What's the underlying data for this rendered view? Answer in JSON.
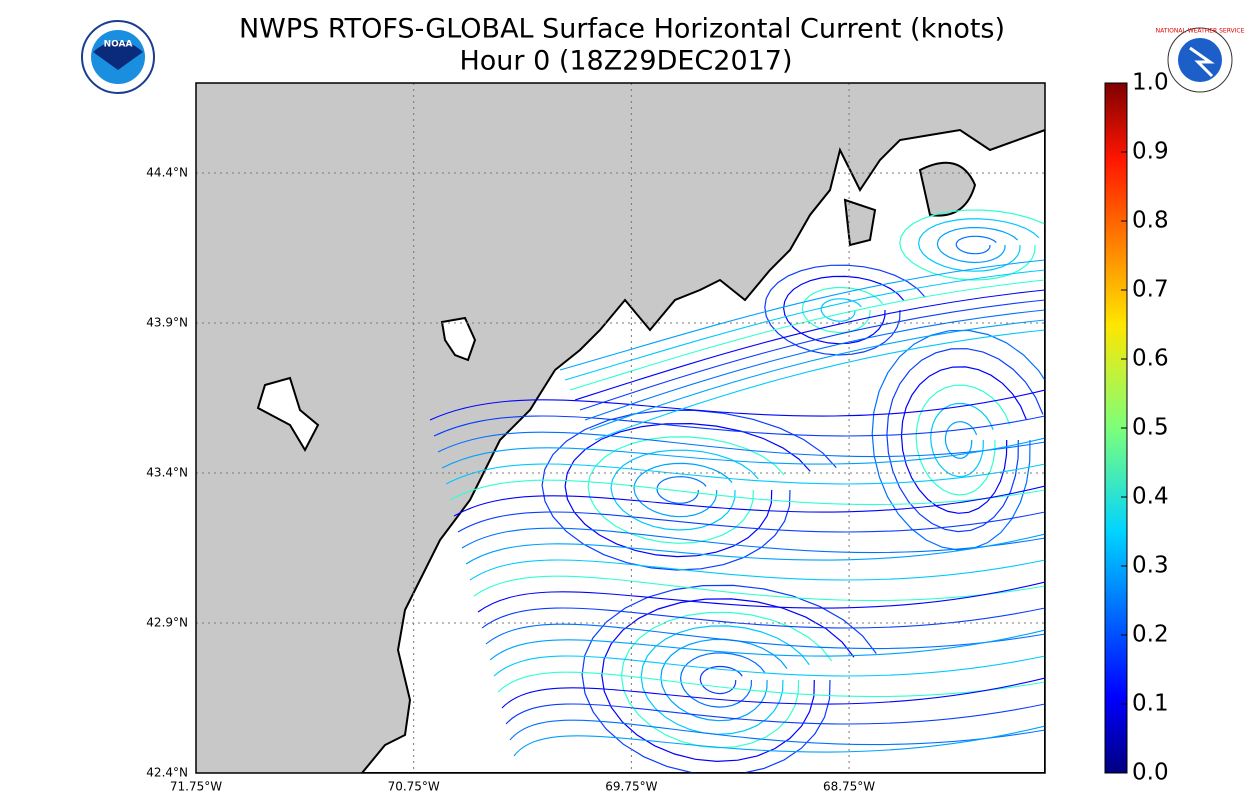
{
  "chart_data": {
    "type": "map",
    "title": "NWPS RTOFS-GLOBAL Surface Horizontal Current (knots)",
    "subtitle": "Hour 0 (18Z29DEC2017)",
    "xlim": [
      -71.75,
      -67.85
    ],
    "ylim": [
      42.4,
      44.7
    ],
    "xticks": [
      {
        "value": -71.75,
        "label": "71.75°W"
      },
      {
        "value": -70.75,
        "label": "70.75°W"
      },
      {
        "value": -69.75,
        "label": "69.75°W"
      },
      {
        "value": -68.75,
        "label": "68.75°W"
      }
    ],
    "yticks": [
      {
        "value": 42.4,
        "label": "42.4°N"
      },
      {
        "value": 42.9,
        "label": "42.9°N"
      },
      {
        "value": 43.4,
        "label": "43.4°N"
      },
      {
        "value": 43.9,
        "label": "43.9°N"
      },
      {
        "value": 44.4,
        "label": "44.4°N"
      }
    ],
    "colorbar": {
      "lim": [
        0,
        1
      ],
      "ticks": [
        {
          "value": 0,
          "label": "0.0"
        },
        0.1,
        0.2,
        0.3,
        0.4,
        0.5,
        0.6,
        0.7,
        0.8,
        0.9,
        {
          "value": 1,
          "label": "1.0"
        }
      ],
      "colormap": "jet"
    },
    "grid": true,
    "logos": {
      "left": "NOAA",
      "right": "NATIONAL WEATHER SERVICE"
    }
  }
}
